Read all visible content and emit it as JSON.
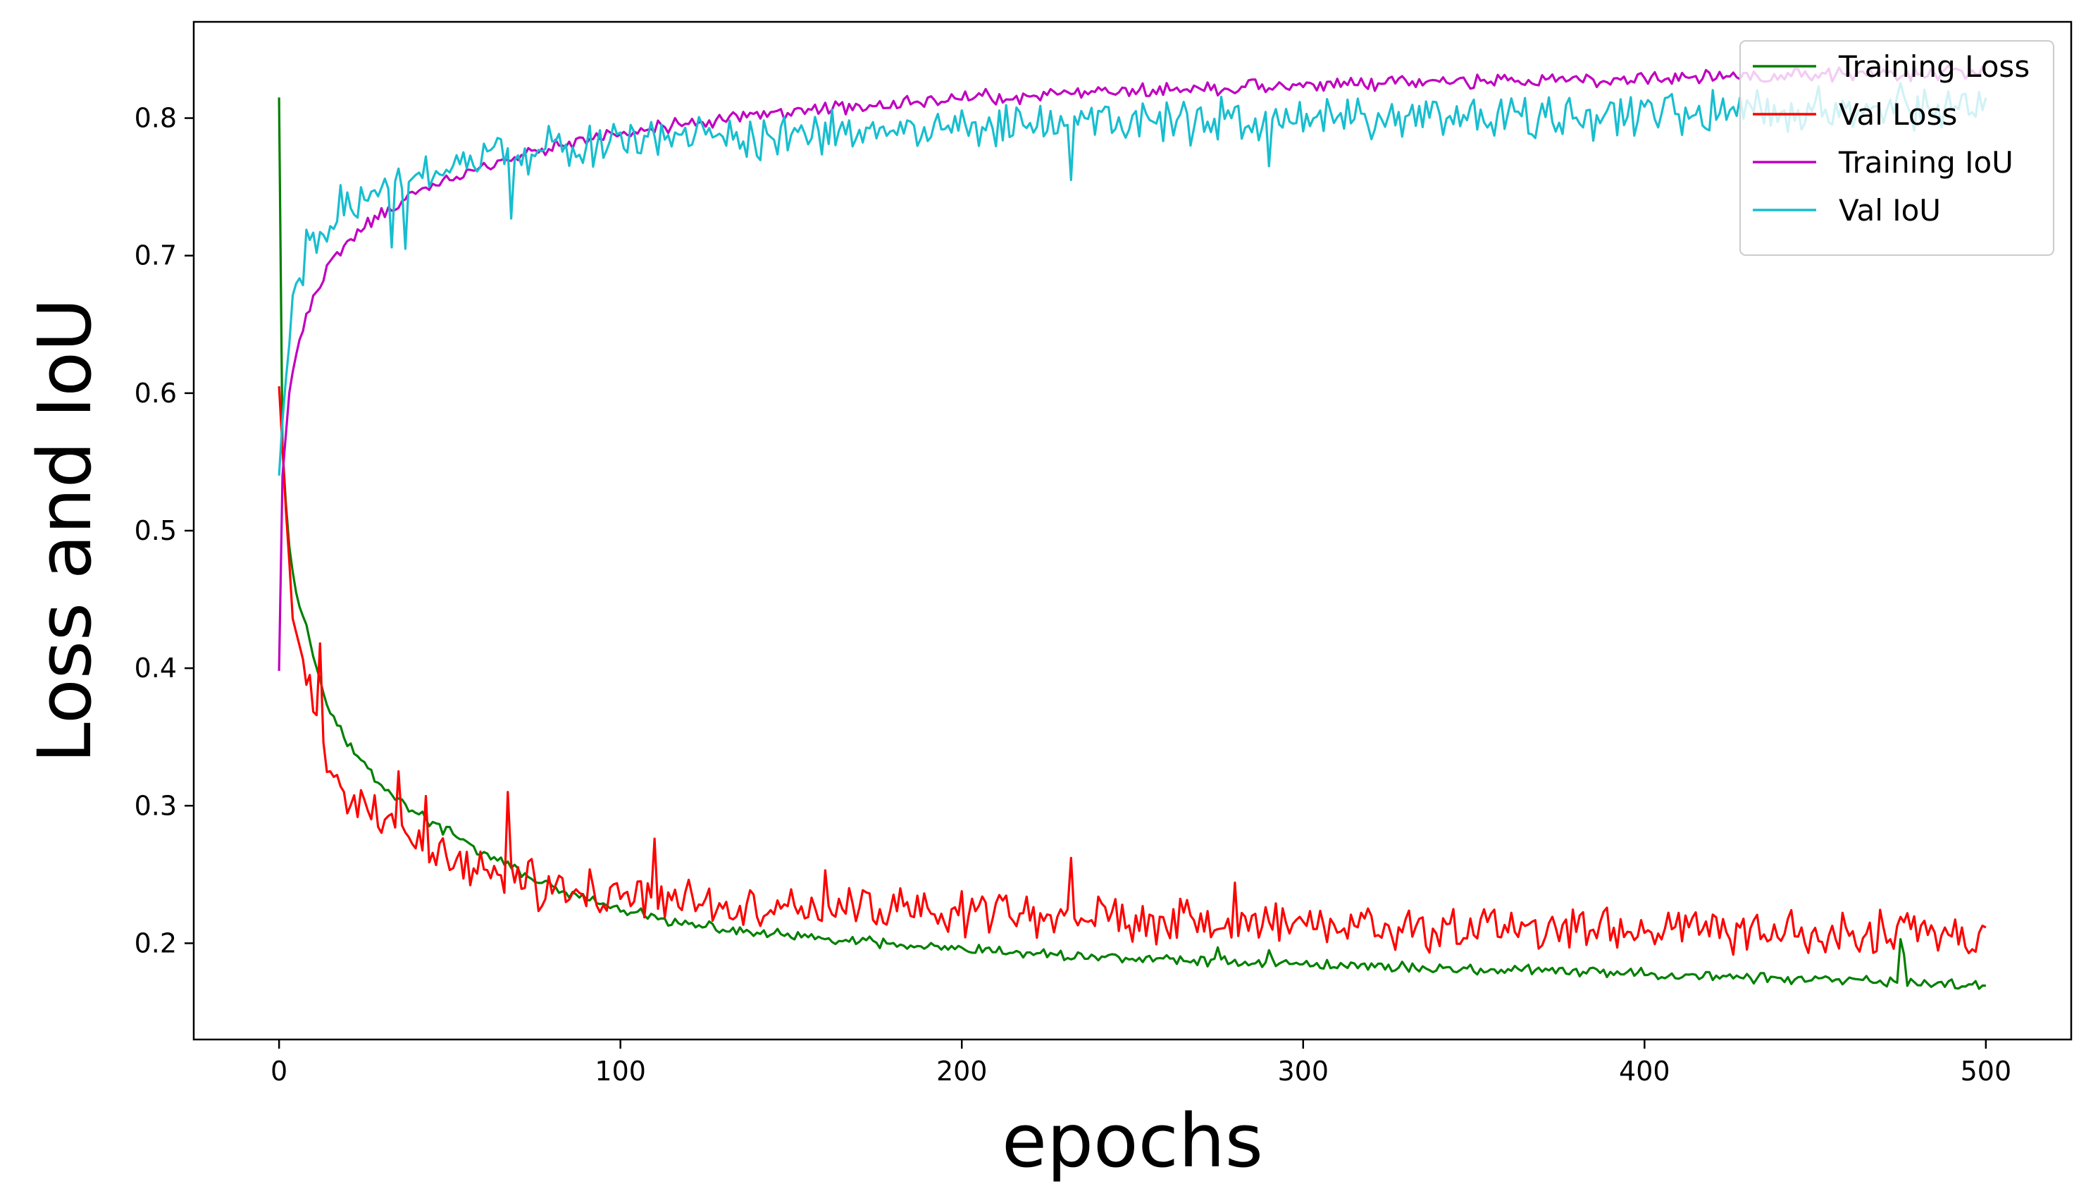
{
  "chart_data": {
    "type": "line",
    "title": "",
    "xlabel": "epochs",
    "ylabel": "Loss and IoU",
    "xlim": [
      -25,
      525
    ],
    "ylim": [
      0.13,
      0.87
    ],
    "xticks": [
      0,
      100,
      200,
      300,
      400,
      500
    ],
    "yticks": [
      0.2,
      0.3,
      0.4,
      0.5,
      0.6,
      0.7,
      0.8
    ],
    "grid": false,
    "legend_position": "top-right",
    "series": [
      {
        "name": "Training Loss",
        "color": "#008000",
        "x_range": [
          0,
          500
        ],
        "noise": 0.003,
        "spikes": [
          [
            475,
            0.203
          ],
          [
            476,
            0.192
          ],
          [
            290,
            0.195
          ],
          [
            275,
            0.197
          ]
        ],
        "anchors": [
          [
            0,
            0.815
          ],
          [
            1,
            0.56
          ],
          [
            2,
            0.52
          ],
          [
            3,
            0.49
          ],
          [
            4,
            0.47
          ],
          [
            5,
            0.455
          ],
          [
            8,
            0.43
          ],
          [
            10,
            0.41
          ],
          [
            15,
            0.37
          ],
          [
            20,
            0.345
          ],
          [
            25,
            0.33
          ],
          [
            30,
            0.315
          ],
          [
            40,
            0.295
          ],
          [
            50,
            0.28
          ],
          [
            60,
            0.265
          ],
          [
            70,
            0.253
          ],
          [
            80,
            0.24
          ],
          [
            90,
            0.232
          ],
          [
            100,
            0.224
          ],
          [
            120,
            0.213
          ],
          [
            150,
            0.205
          ],
          [
            200,
            0.195
          ],
          [
            250,
            0.189
          ],
          [
            300,
            0.185
          ],
          [
            350,
            0.181
          ],
          [
            400,
            0.178
          ],
          [
            450,
            0.173
          ],
          [
            500,
            0.17
          ]
        ]
      },
      {
        "name": "Val Loss",
        "color": "#ff0000",
        "x_range": [
          0,
          500
        ],
        "noise": 0.012,
        "spikes": [
          [
            12,
            0.418
          ],
          [
            67,
            0.31
          ],
          [
            110,
            0.276
          ],
          [
            232,
            0.262
          ],
          [
            35,
            0.325
          ],
          [
            43,
            0.307
          ],
          [
            280,
            0.244
          ],
          [
            160,
            0.253
          ]
        ],
        "anchors": [
          [
            0,
            0.605
          ],
          [
            1,
            0.56
          ],
          [
            3,
            0.47
          ],
          [
            5,
            0.42
          ],
          [
            8,
            0.39
          ],
          [
            10,
            0.37
          ],
          [
            15,
            0.33
          ],
          [
            20,
            0.305
          ],
          [
            25,
            0.295
          ],
          [
            30,
            0.285
          ],
          [
            40,
            0.27
          ],
          [
            50,
            0.26
          ],
          [
            60,
            0.252
          ],
          [
            70,
            0.245
          ],
          [
            80,
            0.24
          ],
          [
            100,
            0.236
          ],
          [
            150,
            0.226
          ],
          [
            200,
            0.222
          ],
          [
            250,
            0.218
          ],
          [
            300,
            0.214
          ],
          [
            350,
            0.211
          ],
          [
            400,
            0.209
          ],
          [
            450,
            0.208
          ],
          [
            500,
            0.208
          ]
        ]
      },
      {
        "name": "Training IoU",
        "color": "#c000c0",
        "x_range": [
          0,
          500
        ],
        "noise": 0.004,
        "spikes": [],
        "anchors": [
          [
            0,
            0.398
          ],
          [
            1,
            0.54
          ],
          [
            3,
            0.6
          ],
          [
            5,
            0.63
          ],
          [
            8,
            0.655
          ],
          [
            10,
            0.67
          ],
          [
            15,
            0.695
          ],
          [
            20,
            0.71
          ],
          [
            30,
            0.73
          ],
          [
            40,
            0.745
          ],
          [
            50,
            0.755
          ],
          [
            60,
            0.765
          ],
          [
            70,
            0.772
          ],
          [
            80,
            0.778
          ],
          [
            100,
            0.79
          ],
          [
            150,
            0.805
          ],
          [
            200,
            0.814
          ],
          [
            250,
            0.82
          ],
          [
            300,
            0.824
          ],
          [
            350,
            0.827
          ],
          [
            400,
            0.829
          ],
          [
            450,
            0.831
          ],
          [
            500,
            0.833
          ]
        ]
      },
      {
        "name": "Val IoU",
        "color": "#17becf",
        "x_range": [
          0,
          500
        ],
        "noise": 0.012,
        "spikes": [
          [
            68,
            0.727
          ],
          [
            33,
            0.706
          ],
          [
            37,
            0.705
          ],
          [
            232,
            0.755
          ],
          [
            290,
            0.765
          ]
        ],
        "anchors": [
          [
            0,
            0.54
          ],
          [
            1,
            0.58
          ],
          [
            3,
            0.64
          ],
          [
            5,
            0.68
          ],
          [
            8,
            0.7
          ],
          [
            10,
            0.71
          ],
          [
            15,
            0.73
          ],
          [
            20,
            0.74
          ],
          [
            30,
            0.748
          ],
          [
            40,
            0.755
          ],
          [
            50,
            0.762
          ],
          [
            60,
            0.768
          ],
          [
            70,
            0.772
          ],
          [
            80,
            0.776
          ],
          [
            100,
            0.782
          ],
          [
            150,
            0.788
          ],
          [
            200,
            0.793
          ],
          [
            250,
            0.797
          ],
          [
            300,
            0.799
          ],
          [
            350,
            0.801
          ],
          [
            400,
            0.803
          ],
          [
            450,
            0.806
          ],
          [
            500,
            0.808
          ]
        ]
      }
    ]
  }
}
